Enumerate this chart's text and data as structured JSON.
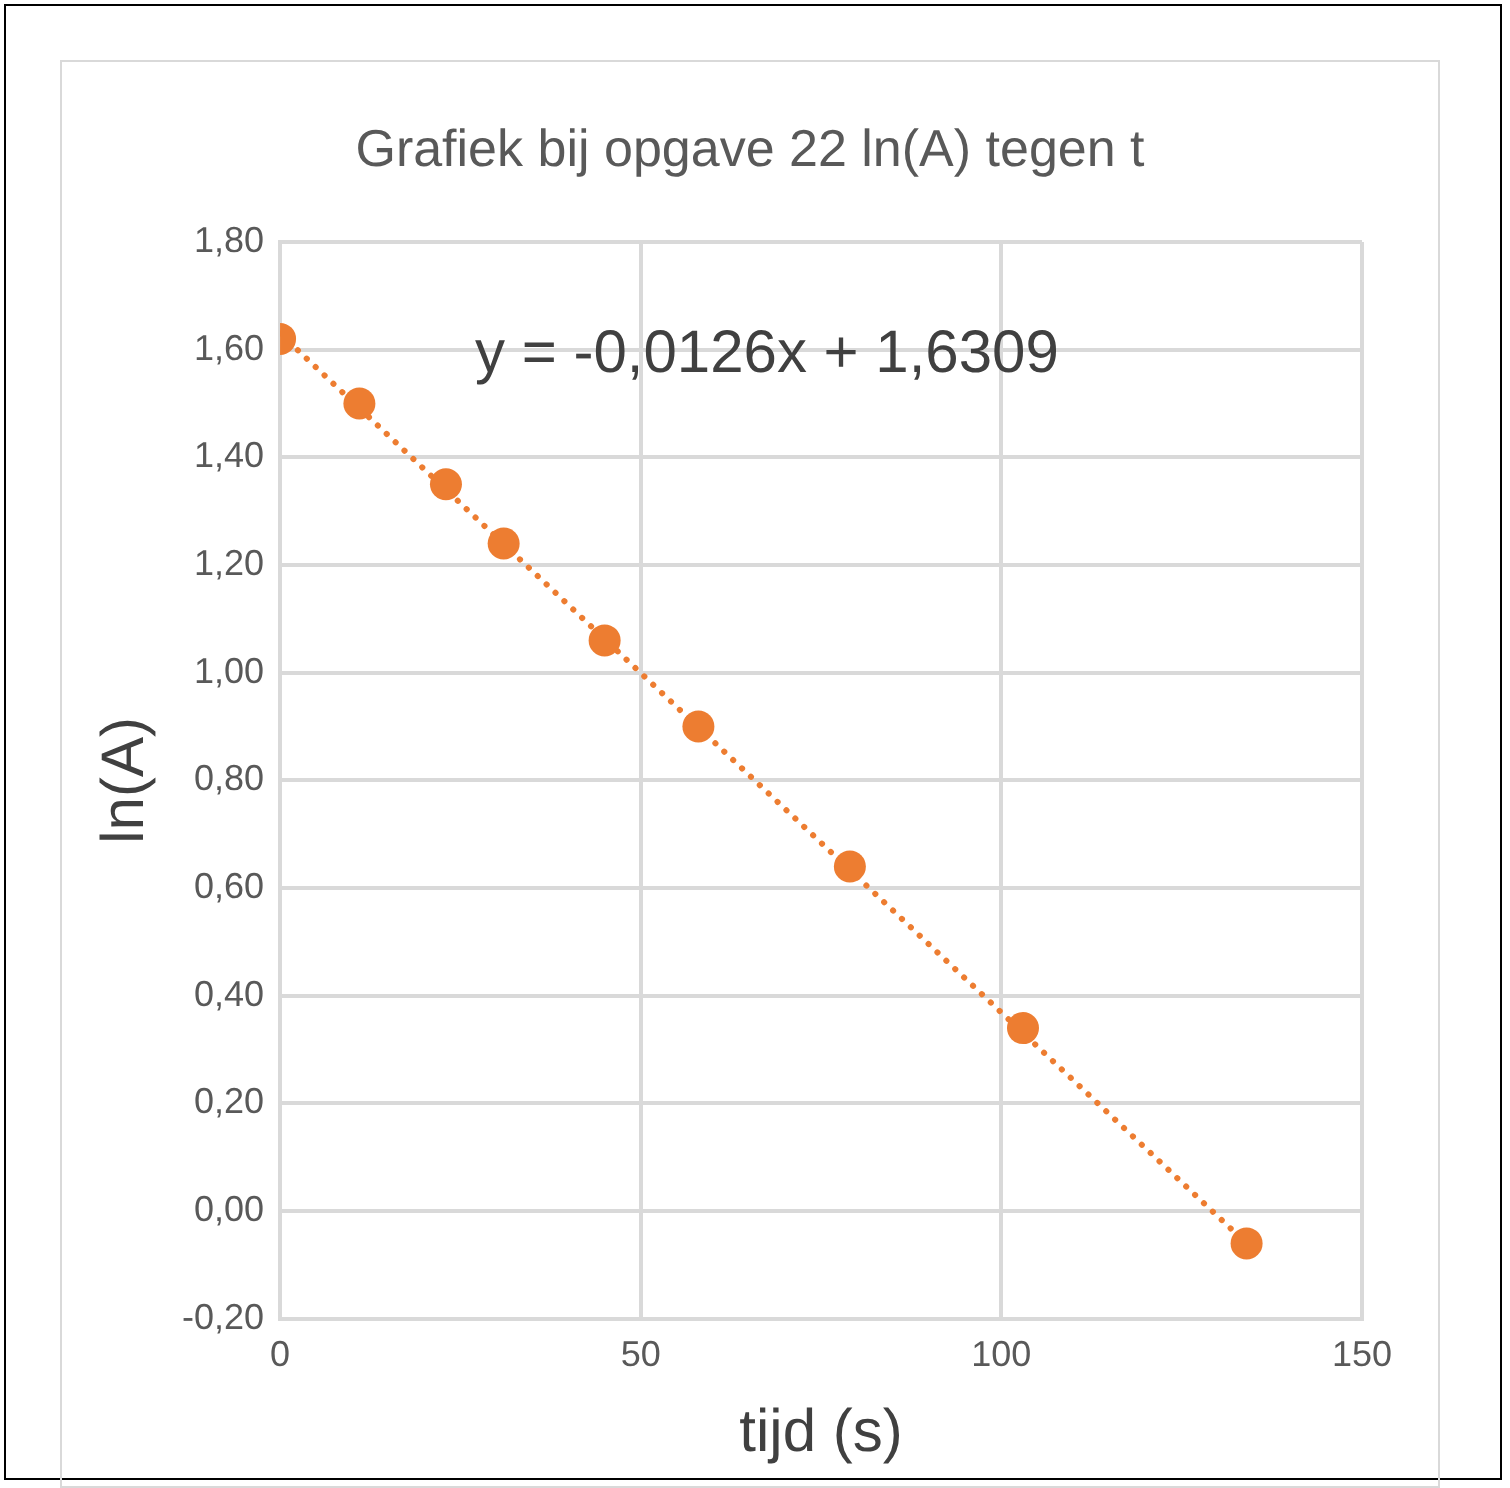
{
  "chart_data": {
    "type": "scatter",
    "title": "Grafiek bij opgave 22 ln(A) tegen t",
    "xlabel": "tijd (s)",
    "ylabel": "ln(A)",
    "annotations": [
      "y = -0,0126x + 1,6309"
    ],
    "series": [
      {
        "type": "scatter",
        "color": "#ed7d31",
        "marker": "circle",
        "x": [
          0,
          11,
          23,
          31,
          45,
          58,
          79,
          103,
          134
        ],
        "values": [
          1.62,
          1.5,
          1.35,
          1.24,
          1.06,
          0.9,
          0.64,
          0.34,
          -0.06
        ]
      },
      {
        "type": "line",
        "color": "#ed7d31",
        "marker": "none",
        "line_style": "dotted",
        "x": [
          0,
          134
        ],
        "values": [
          1.63,
          -0.06
        ]
      }
    ],
    "xlim": [
      0,
      150
    ],
    "xticks": [
      0,
      50,
      100,
      150
    ],
    "ylim": [
      -0.2,
      1.8
    ],
    "yticks": [
      {
        "value": -0.2,
        "label": "-0,20"
      },
      {
        "value": 0,
        "label": "0,00"
      },
      {
        "value": 0.2,
        "label": "0,20"
      },
      {
        "value": 0.4,
        "label": "0,40"
      },
      {
        "value": 0.6,
        "label": "0,60"
      },
      {
        "value": 0.8,
        "label": "0,80"
      },
      {
        "value": 1.0,
        "label": "1,00"
      },
      {
        "value": 1.2,
        "label": "1,20"
      },
      {
        "value": 1.4,
        "label": "1,40"
      },
      {
        "value": 1.6,
        "label": "1,60"
      },
      {
        "value": 1.8,
        "label": "1,80"
      }
    ],
    "grid": true,
    "legend": false
  }
}
